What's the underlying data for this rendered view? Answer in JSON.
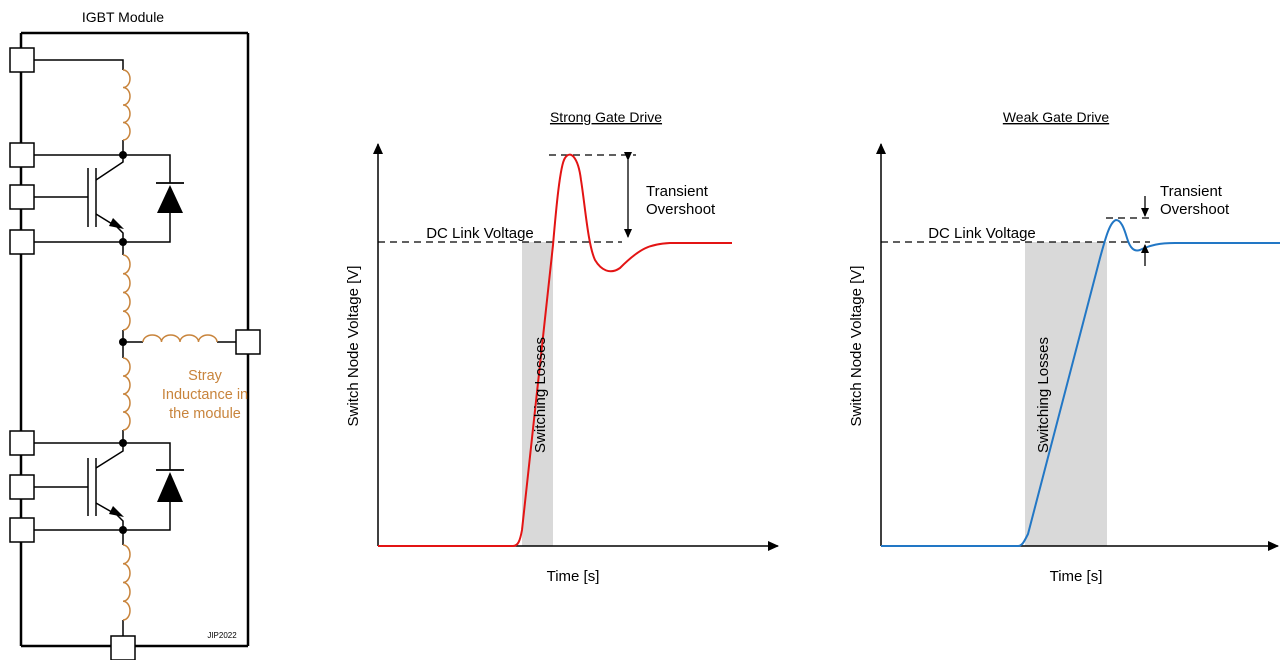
{
  "colors": {
    "stray": "#C8843C",
    "strong": "#E31414",
    "weak": "#2277C5",
    "shade": "#D9D9D9"
  },
  "schematic": {
    "title": "IGBT Module",
    "stray_label": [
      "Stray",
      "Inductance in",
      "the module"
    ],
    "signature": "JIP2022"
  },
  "charts": [
    {
      "key": "strong",
      "title": "Strong Gate Drive",
      "ylabel": "Switch Node Voltage [V]",
      "xlabel": "Time [s]",
      "dc_label": "DC Link Voltage",
      "region_label": "Switching Losses",
      "overshoot_label": [
        "Transient",
        "Overshoot"
      ]
    },
    {
      "key": "weak",
      "title": "Weak Gate Drive",
      "ylabel": "Switch Node Voltage [V]",
      "xlabel": "Time [s]",
      "dc_label": "DC Link Voltage",
      "region_label": "Switching Losses",
      "overshoot_label": [
        "Transient",
        "Overshoot"
      ]
    }
  ]
}
